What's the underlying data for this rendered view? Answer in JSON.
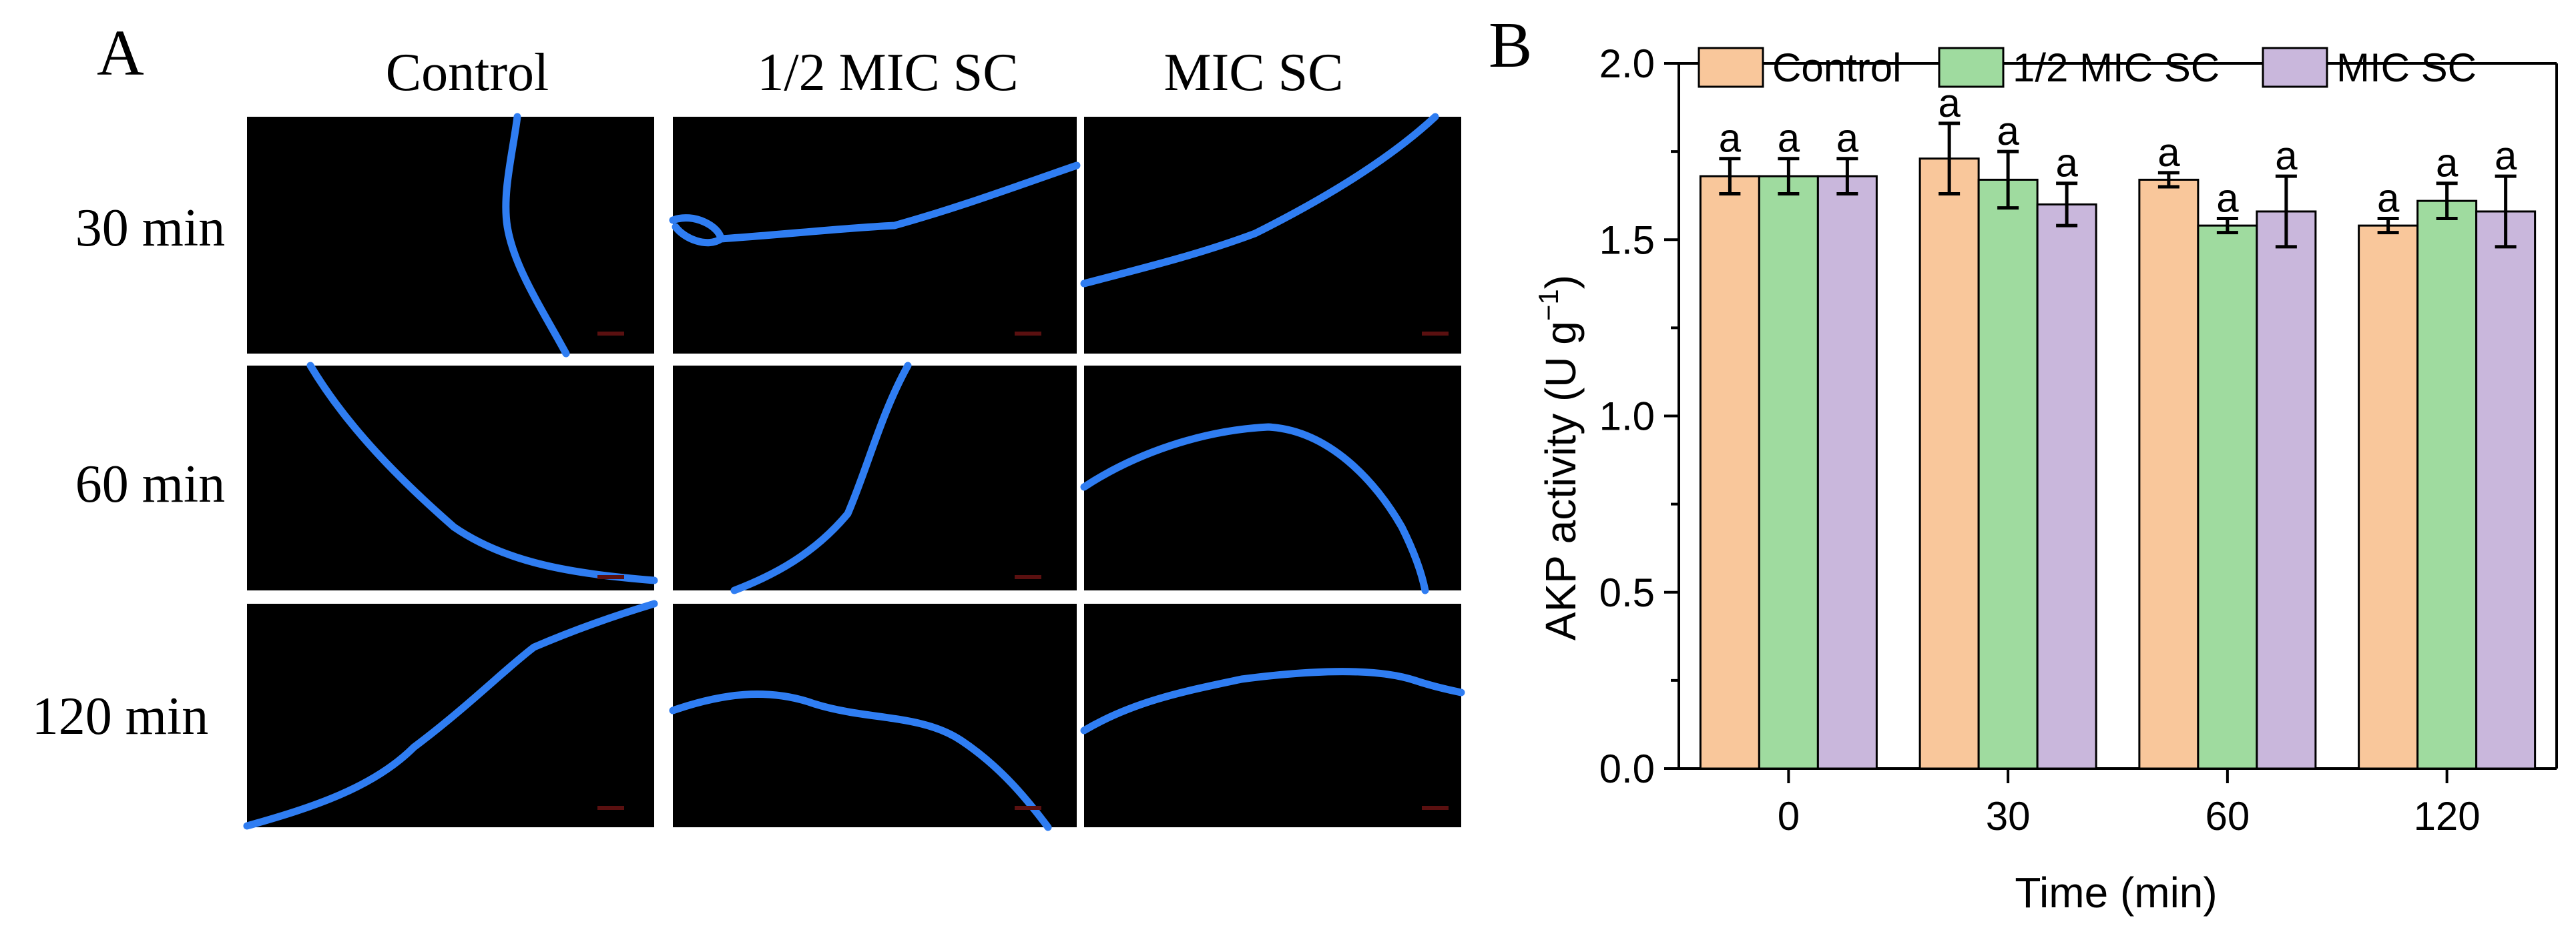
{
  "panel_a": {
    "label": "A",
    "column_headers": [
      "Control",
      "1/2 MIC SC",
      "MIC SC"
    ],
    "row_headers": [
      "30 min",
      "60 min",
      "120 min"
    ],
    "image_description": "fluorescence-micrographs",
    "colors": {
      "background": "#000000",
      "fiber": "#2f7df2"
    }
  },
  "panel_b": {
    "label": "B"
  },
  "chart_data": {
    "type": "bar",
    "title": "",
    "xlabel": "Time (min)",
    "ylabel_main": "AKP activity (U g",
    "ylabel_sup": "−1",
    "ylabel_end": ")",
    "categories": [
      "0",
      "30",
      "60",
      "120"
    ],
    "ylim": [
      0,
      2.0
    ],
    "yticks": [
      "0.0",
      "0.5",
      "1.0",
      "1.5",
      "2.0"
    ],
    "ytick_values": [
      0,
      0.5,
      1.0,
      1.5,
      2.0
    ],
    "legend_position": "top",
    "series": [
      {
        "name": "Control",
        "color": "#f9c79b",
        "values": [
          1.68,
          1.73,
          1.67,
          1.54
        ],
        "errors": [
          0.05,
          0.1,
          0.02,
          0.02
        ],
        "labels": [
          "a",
          "a",
          "a",
          "a"
        ]
      },
      {
        "name": "1/2 MIC SC",
        "color": "#9fdb9f",
        "values": [
          1.68,
          1.67,
          1.54,
          1.61
        ],
        "errors": [
          0.05,
          0.08,
          0.02,
          0.05
        ],
        "labels": [
          "a",
          "a",
          "a",
          "a"
        ]
      },
      {
        "name": "MIC SC",
        "color": "#c9b7dc",
        "values": [
          1.68,
          1.6,
          1.58,
          1.58
        ],
        "errors": [
          0.05,
          0.06,
          0.1,
          0.1
        ],
        "labels": [
          "a",
          "a",
          "a",
          "a"
        ]
      }
    ]
  }
}
